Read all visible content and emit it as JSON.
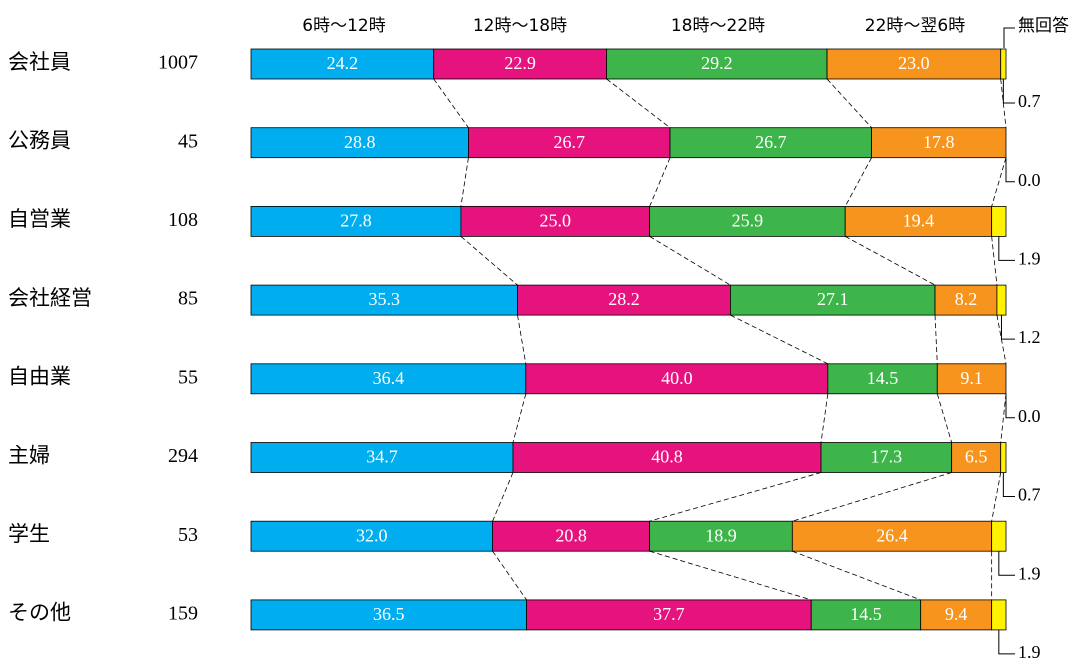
{
  "chart_data": {
    "type": "stacked-bar-100",
    "categories": [
      "会社員",
      "公務員",
      "自営業",
      "会社経営",
      "自由業",
      "主婦",
      "学生",
      "その他"
    ],
    "n": [
      1007,
      45,
      108,
      85,
      55,
      294,
      53,
      159
    ],
    "xlim": [
      0,
      100
    ],
    "series": [
      {
        "name": "6時～12時",
        "color": "#00aeef",
        "values": [
          24.2,
          28.8,
          27.8,
          35.3,
          36.4,
          34.7,
          32.0,
          36.5
        ],
        "value_labels": [
          "24.2",
          "28.8",
          "27.8",
          "35.3",
          "36.4",
          "34.7",
          "32.0",
          "36.5"
        ]
      },
      {
        "name": "12時～18時",
        "color": "#e6137f",
        "values": [
          22.9,
          26.7,
          25.0,
          28.2,
          40.0,
          40.8,
          20.8,
          37.7
        ],
        "value_labels": [
          "22.9",
          "26.7",
          "25.0",
          "28.2",
          "40.0",
          "40.8",
          "20.8",
          "37.7"
        ]
      },
      {
        "name": "18時～22時",
        "color": "#3db54a",
        "values": [
          29.2,
          26.7,
          25.9,
          27.1,
          14.5,
          17.3,
          18.9,
          14.5
        ],
        "value_labels": [
          "29.2",
          "26.7",
          "25.9",
          "27.1",
          "14.5",
          "17.3",
          "18.9",
          "14.5"
        ]
      },
      {
        "name": "22時～翌6時",
        "color": "#f7941d",
        "values": [
          23.0,
          17.8,
          19.4,
          8.2,
          9.1,
          6.5,
          26.4,
          9.4
        ],
        "value_labels": [
          "23.0",
          "17.8",
          "19.4",
          "8.2",
          "9.1",
          "6.5",
          "26.4",
          "9.4"
        ]
      },
      {
        "name": "無回答",
        "color": "#fff200",
        "values": [
          0.7,
          0.0,
          1.9,
          1.2,
          0.0,
          0.7,
          1.9,
          1.9
        ],
        "value_labels": [
          "0.7",
          "0.0",
          "1.9",
          "1.2",
          "0.0",
          "0.7",
          "1.9",
          "1.9"
        ]
      }
    ]
  }
}
